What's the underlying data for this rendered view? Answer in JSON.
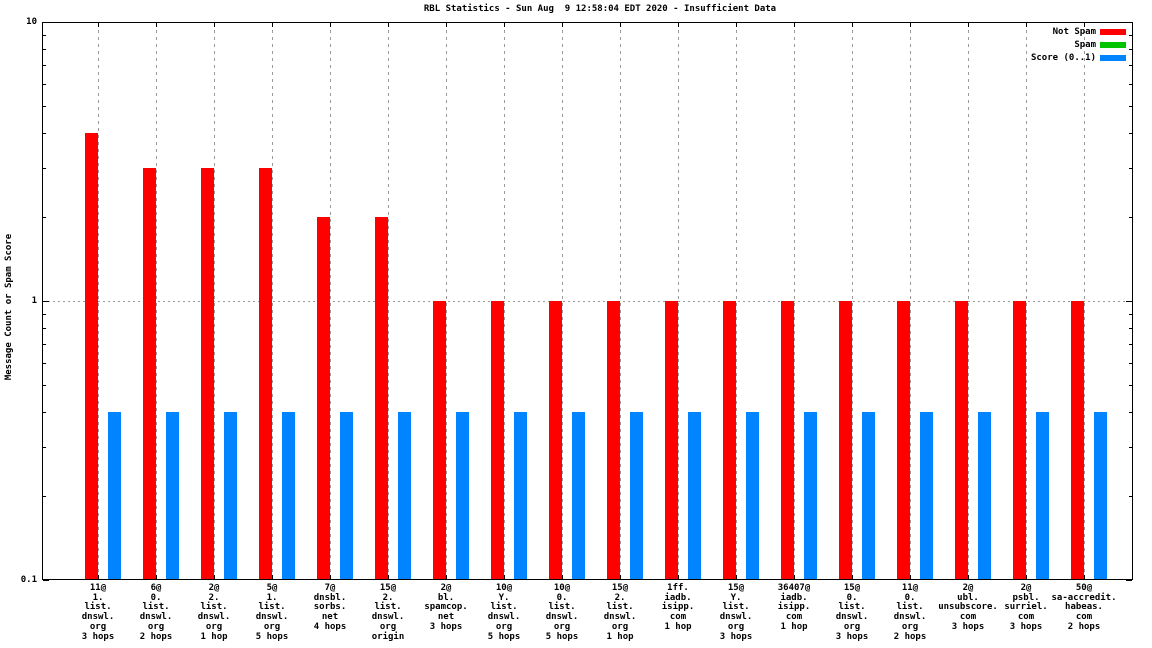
{
  "title": "RBL Statistics - Sun Aug  9 12:58:04 EDT 2020 - Insufficient Data",
  "chart_data": {
    "type": "bar",
    "title": "RBL Statistics - Sun Aug  9 12:58:04 EDT 2020 - Insufficient Data",
    "ylabel": "Message Count or Spam Score",
    "xlabel": "",
    "y_scale": "log",
    "ylim": [
      0.1,
      10
    ],
    "y_major_ticks": [
      {
        "value": 10,
        "label": "10"
      },
      {
        "value": 1,
        "label": "1"
      },
      {
        "value": 0.1,
        "label": "0.1"
      }
    ],
    "grid": {
      "vertical_dashed": true,
      "horizontal_dotted_at": 1
    },
    "legend_position": "top-right-inside",
    "legend": [
      {
        "label": "Not Spam",
        "color": "#ff0000"
      },
      {
        "label": "Spam",
        "color": "#00c400"
      },
      {
        "label": "Score (0..1)",
        "color": "#0084ff"
      }
    ],
    "colors": {
      "not_spam": "#ff0000",
      "spam": "#00c400",
      "score": "#0084ff",
      "grid": "#9a9a9a",
      "axis": "#000000"
    },
    "categories": [
      [
        "11@",
        "1.",
        "list.",
        "dnswl.",
        "org",
        "3 hops"
      ],
      [
        "6@",
        "0.",
        "list.",
        "dnswl.",
        "org",
        "2 hops"
      ],
      [
        "2@",
        "2.",
        "list.",
        "dnswl.",
        "org",
        "1 hop"
      ],
      [
        "5@",
        "1.",
        "list.",
        "dnswl.",
        "org",
        "5 hops"
      ],
      [
        "7@",
        "dnsbl.",
        "sorbs.",
        "net",
        "4 hops"
      ],
      [
        "15@",
        "2.",
        "list.",
        "dnswl.",
        "org",
        "origin"
      ],
      [
        "2@",
        "bl.",
        "spamcop.",
        "net",
        "3 hops"
      ],
      [
        "10@",
        "Y.",
        "list.",
        "dnswl.",
        "org",
        "5 hops"
      ],
      [
        "10@",
        "0.",
        "list.",
        "dnswl.",
        "org",
        "5 hops"
      ],
      [
        "15@",
        "2.",
        "list.",
        "dnswl.",
        "org",
        "1 hop"
      ],
      [
        "1ff.",
        "iadb.",
        "isipp.",
        "com",
        "1 hop"
      ],
      [
        "15@",
        "Y.",
        "list.",
        "dnswl.",
        "org",
        "3 hops"
      ],
      [
        "36407@",
        "iadb.",
        "isipp.",
        "com",
        "1 hop"
      ],
      [
        "15@",
        "0.",
        "list.",
        "dnswl.",
        "org",
        "3 hops"
      ],
      [
        "11@",
        "0.",
        "list.",
        "dnswl.",
        "org",
        "2 hops"
      ],
      [
        "2@",
        "ubl.",
        "unsubscore.",
        "com",
        "3 hops"
      ],
      [
        "2@",
        "psbl.",
        "surriel.",
        "com",
        "3 hops"
      ],
      [
        "50@",
        "sa-accredit.",
        "habeas.",
        "com",
        "2 hops"
      ]
    ],
    "series": [
      {
        "name": "Not Spam",
        "color": "#ff0000",
        "values": [
          4,
          3,
          3,
          3,
          2,
          2,
          1,
          1,
          1,
          1,
          1,
          1,
          1,
          1,
          1,
          1,
          1,
          1
        ]
      },
      {
        "name": "Spam",
        "color": "#00c400",
        "values": [
          0,
          0,
          0,
          0,
          0,
          0,
          0,
          0,
          0,
          0,
          0,
          0,
          0,
          0,
          0,
          0,
          0,
          0
        ]
      },
      {
        "name": "Score (0..1)",
        "color": "#0084ff",
        "values": [
          0.4,
          0.4,
          0.4,
          0.4,
          0.4,
          0.4,
          0.4,
          0.4,
          0.4,
          0.4,
          0.4,
          0.4,
          0.4,
          0.4,
          0.4,
          0.4,
          0.4,
          0.4
        ]
      }
    ]
  }
}
